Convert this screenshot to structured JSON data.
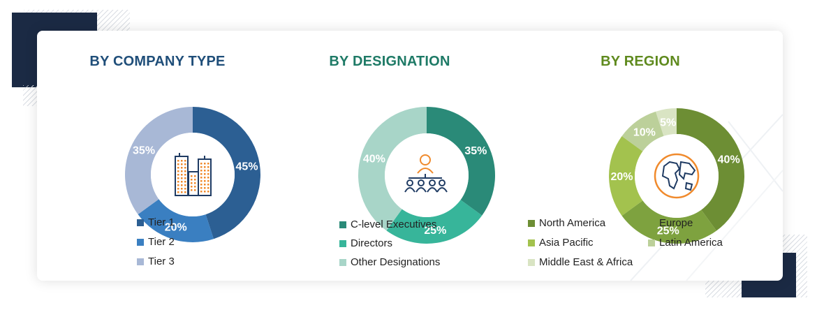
{
  "chart_data": [
    {
      "type": "pie",
      "title": "BY COMPANY TYPE",
      "title_color": "#1f4e79",
      "icon": "office-buildings-icon",
      "categories": [
        "Tier 1",
        "Tier 2",
        "Tier 3"
      ],
      "values": [
        45,
        20,
        35
      ],
      "labels": [
        "45%",
        "20%",
        "35%"
      ],
      "colors": [
        "#2c5f93",
        "#3a7fc1",
        "#a8b8d6"
      ],
      "legend_position": "bottom"
    },
    {
      "type": "pie",
      "title": "BY DESIGNATION",
      "title_color": "#1e7a66",
      "icon": "team-hierarchy-icon",
      "categories": [
        "C-level Executives",
        "Directors",
        "Other Designations"
      ],
      "values": [
        35,
        25,
        40
      ],
      "labels": [
        "35%",
        "25%",
        "40%"
      ],
      "colors": [
        "#2a8a78",
        "#37b59a",
        "#a8d5c8"
      ],
      "legend_position": "bottom"
    },
    {
      "type": "pie",
      "title": "BY REGION",
      "title_color": "#5f8a1e",
      "icon": "globe-icon",
      "categories": [
        "North America",
        "Europe",
        "Asia Pacific",
        "Latin America",
        "Middle East & Africa"
      ],
      "values": [
        40,
        25,
        20,
        10,
        5
      ],
      "labels": [
        "40%",
        "25%",
        "20%",
        "10%",
        "5%"
      ],
      "colors": [
        "#6d8e34",
        "#7ea23f",
        "#a3c24e",
        "#bcd09a",
        "#d9e4c3"
      ],
      "legend_position": "bottom"
    }
  ]
}
